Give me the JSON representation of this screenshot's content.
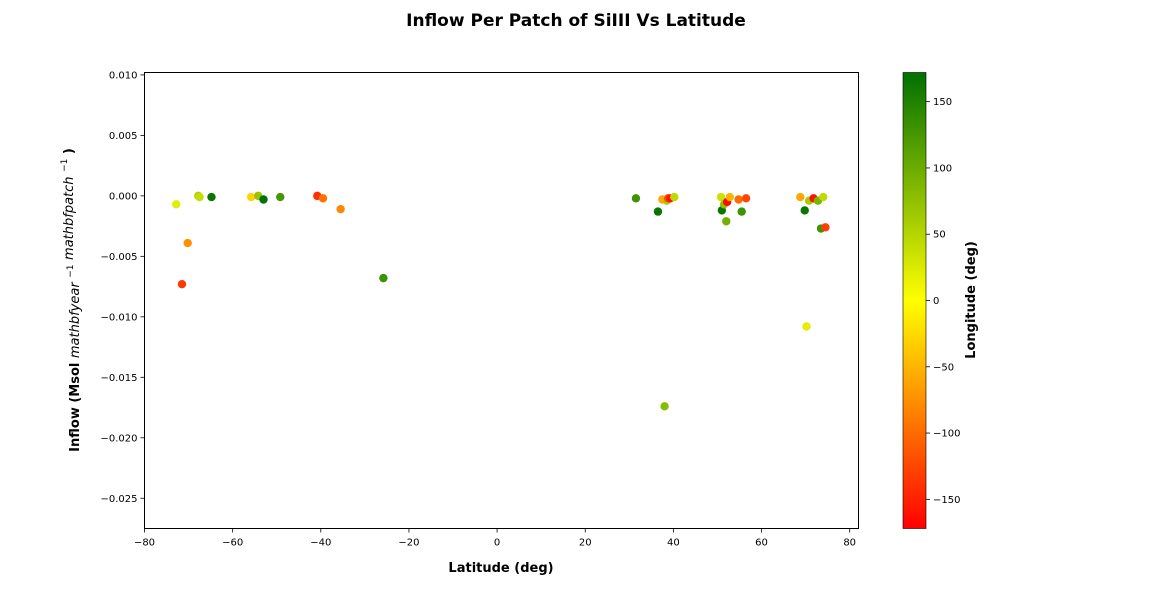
{
  "chart_data": {
    "type": "scatter",
    "title": "Inflow Per Patch of SiIII Vs Latitude",
    "xlabel": "Latitude (deg)",
    "ylabel": "Inflow (Msol $mathbf{year}^{-1}$ $mathbf{patch}^{-1}$)",
    "ylabel_parts": {
      "prefix": "Inflow (Msol ",
      "part1": "mathbfyear",
      "sup1": "−1",
      "part2": "mathbfpatch",
      "sup2": "−1",
      "suffix": ")"
    },
    "xlim": [
      -80,
      82
    ],
    "ylim": [
      -0.0275,
      0.0102
    ],
    "xticks": [
      -80,
      -60,
      -40,
      -20,
      0,
      20,
      40,
      60,
      80
    ],
    "xtick_labels": [
      "−80",
      "−60",
      "−40",
      "−20",
      "0",
      "20",
      "40",
      "60",
      "80"
    ],
    "yticks": [
      0.01,
      0.005,
      0.0,
      -0.005,
      -0.01,
      -0.015,
      -0.02,
      -0.025
    ],
    "ytick_labels": [
      "0.010",
      "0.005",
      "0.000",
      "−0.005",
      "−0.010",
      "−0.015",
      "−0.020",
      "−0.025"
    ],
    "grid": false,
    "colorbar": {
      "label": "Longitude (deg)",
      "range": [
        -172,
        172
      ],
      "ticks": [
        150,
        100,
        50,
        0,
        -50,
        -100,
        -150
      ],
      "tick_labels": [
        "150",
        "100",
        "50",
        "0",
        "−50",
        "−100",
        "−150"
      ],
      "colormap": [
        "#ff0000",
        "#ffff00",
        "#007000"
      ]
    },
    "points": [
      {
        "lat": -72.8,
        "inflow": -0.0007,
        "lon": 20
      },
      {
        "lat": -71.5,
        "inflow": -0.0073,
        "lon": -135
      },
      {
        "lat": -70.2,
        "inflow": -0.0039,
        "lon": -75
      },
      {
        "lat": -67.8,
        "inflow": 0.0,
        "lon": 55
      },
      {
        "lat": -67.5,
        "inflow": -0.0001,
        "lon": 40
      },
      {
        "lat": -64.8,
        "inflow": -0.0001,
        "lon": 165
      },
      {
        "lat": -55.8,
        "inflow": -0.0001,
        "lon": -30
      },
      {
        "lat": -54.2,
        "inflow": 0.0,
        "lon": 70
      },
      {
        "lat": -53.0,
        "inflow": -0.0003,
        "lon": 170
      },
      {
        "lat": -49.2,
        "inflow": -0.0001,
        "lon": 125
      },
      {
        "lat": -40.8,
        "inflow": 0.0,
        "lon": -140
      },
      {
        "lat": -39.5,
        "inflow": -0.0002,
        "lon": -95
      },
      {
        "lat": -35.5,
        "inflow": -0.0011,
        "lon": -80
      },
      {
        "lat": -25.8,
        "inflow": -0.0068,
        "lon": 130
      },
      {
        "lat": 31.5,
        "inflow": -0.0002,
        "lon": 130
      },
      {
        "lat": 36.5,
        "inflow": -0.0013,
        "lon": 165
      },
      {
        "lat": 37.5,
        "inflow": -0.0003,
        "lon": -60
      },
      {
        "lat": 38.0,
        "inflow": -0.0174,
        "lon": 80
      },
      {
        "lat": 38.5,
        "inflow": -0.0004,
        "lon": 60
      },
      {
        "lat": 38.8,
        "inflow": -0.0002,
        "lon": -120
      },
      {
        "lat": 39.3,
        "inflow": -0.0002,
        "lon": -160
      },
      {
        "lat": 40.2,
        "inflow": -0.0001,
        "lon": 45
      },
      {
        "lat": 50.8,
        "inflow": -0.0001,
        "lon": 35
      },
      {
        "lat": 51.0,
        "inflow": -0.0012,
        "lon": 165
      },
      {
        "lat": 51.5,
        "inflow": -0.0007,
        "lon": 75
      },
      {
        "lat": 52.0,
        "inflow": -0.0021,
        "lon": 95
      },
      {
        "lat": 52.2,
        "inflow": -0.0005,
        "lon": -165
      },
      {
        "lat": 52.8,
        "inflow": -0.0001,
        "lon": -50
      },
      {
        "lat": 54.8,
        "inflow": -0.0003,
        "lon": -100
      },
      {
        "lat": 55.5,
        "inflow": -0.0013,
        "lon": 130
      },
      {
        "lat": 56.5,
        "inflow": -0.0002,
        "lon": -125
      },
      {
        "lat": 68.8,
        "inflow": -0.0001,
        "lon": -60
      },
      {
        "lat": 69.8,
        "inflow": -0.0012,
        "lon": 165
      },
      {
        "lat": 70.2,
        "inflow": -0.0108,
        "lon": 20
      },
      {
        "lat": 70.8,
        "inflow": -0.0004,
        "lon": 60
      },
      {
        "lat": 71.8,
        "inflow": -0.0002,
        "lon": -160
      },
      {
        "lat": 72.8,
        "inflow": -0.0004,
        "lon": 90
      },
      {
        "lat": 73.5,
        "inflow": -0.0027,
        "lon": 130
      },
      {
        "lat": 74.0,
        "inflow": -0.0001,
        "lon": 45
      },
      {
        "lat": 74.5,
        "inflow": -0.0026,
        "lon": -130
      }
    ]
  }
}
